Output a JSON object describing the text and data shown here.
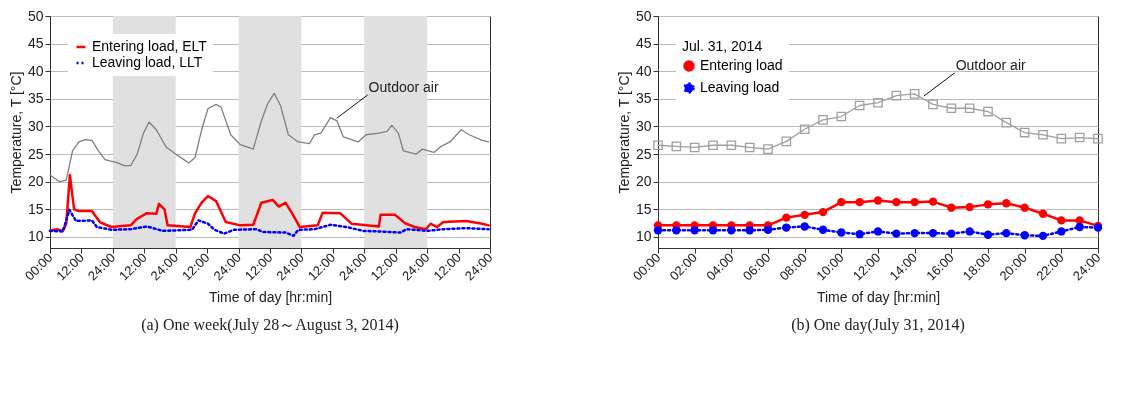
{
  "chart_data": [
    {
      "type": "line",
      "title": "(a)  One week(July 28～August 3, 2014)",
      "xlabel": "Time of day [hr:min]",
      "ylabel": "Temperature, T [°C]",
      "xlim": [
        "2014-07-28T00:00",
        "2014-08-04T00:00"
      ],
      "ylim": [
        8,
        50
      ],
      "xticks": [
        {
          "value": "2014-07-28T00:00",
          "label": "00:00"
        },
        {
          "value": "2014-07-28T12:00",
          "label": "12:00"
        },
        {
          "value": "2014-07-29T00:00",
          "label": "24:00"
        },
        {
          "value": "2014-07-29T12:00",
          "label": "12:00"
        },
        {
          "value": "2014-07-30T00:00",
          "label": "24:00"
        },
        {
          "value": "2014-07-30T12:00",
          "label": "12:00"
        },
        {
          "value": "2014-07-31T00:00",
          "label": "24:00"
        },
        {
          "value": "2014-07-31T12:00",
          "label": "12:00"
        },
        {
          "value": "2014-08-01T00:00",
          "label": "24:00"
        },
        {
          "value": "2014-08-01T12:00",
          "label": "12:00"
        },
        {
          "value": "2014-08-02T00:00",
          "label": "24:00"
        },
        {
          "value": "2014-08-02T12:00",
          "label": "12:00"
        },
        {
          "value": "2014-08-03T00:00",
          "label": "24:00"
        },
        {
          "value": "2014-08-03T12:00",
          "label": "12:00"
        },
        {
          "value": "2014-08-04T00:00",
          "label": "24:00"
        }
      ],
      "yticks": [
        10,
        15,
        20,
        25,
        30,
        35,
        40,
        45,
        50
      ],
      "grid": "y",
      "legend": "top left",
      "bands": [
        {
          "axis": "x",
          "from": "2014-07-29T00:00",
          "to": "2014-07-30T00:00",
          "color": "#e0e0e0"
        },
        {
          "axis": "x",
          "from": "2014-07-31T00:00",
          "to": "2014-08-01T00:00",
          "color": "#e0e0e0"
        },
        {
          "axis": "x",
          "from": "2014-08-02T00:00",
          "to": "2014-08-03T00:00",
          "color": "#e0e0e0"
        }
      ],
      "annotations": [
        {
          "text": "Outdoor air",
          "x": "2014-08-01T13:30",
          "y": 31.5
        }
      ],
      "series": [
        {
          "color": "#808080",
          "line_style": "solid",
          "x": [
            "2014-07-28T00:00",
            "2014-07-28T03:42",
            "2014-07-28T06:12",
            "2014-07-28T08:36",
            "2014-07-28T11:00",
            "2014-07-28T13:30",
            "2014-07-28T16:00",
            "2014-07-28T18:30",
            "2014-07-28T21:00",
            "2014-07-29T01:54",
            "2014-07-29T04:18",
            "2014-07-29T06:48",
            "2014-07-29T09:18",
            "2014-07-29T11:42",
            "2014-07-29T13:48",
            "2014-07-29T16:36",
            "2014-07-29T20:18",
            "2014-07-30T00:00",
            "2014-07-30T05:00",
            "2014-07-30T07:24",
            "2014-07-30T09:54",
            "2014-07-30T12:18",
            "2014-07-30T15:24",
            "2014-07-30T17:18",
            "2014-07-30T21:00",
            "2014-07-31T00:42",
            "2014-07-31T05:36",
            "2014-07-31T08:42",
            "2014-07-31T11:06",
            "2014-07-31T13:36",
            "2014-07-31T16:00",
            "2014-07-31T19:00",
            "2014-07-31T22:48",
            "2014-08-01T03:06",
            "2014-08-01T05:00",
            "2014-08-01T07:24",
            "2014-08-01T11:06",
            "2014-08-01T13:36",
            "2014-08-01T16:00",
            "2014-08-01T21:36",
            "2014-08-02T00:42",
            "2014-08-02T05:36",
            "2014-08-02T08:42",
            "2014-08-02T10:30",
            "2014-08-02T13:00",
            "2014-08-02T14:54",
            "2014-08-02T19:48",
            "2014-08-02T22:12",
            "2014-08-03T02:36",
            "2014-08-03T05:00",
            "2014-08-03T08:42",
            "2014-08-03T13:00",
            "2014-08-03T16:06",
            "2014-08-03T21:00",
            "2014-08-03T23:30"
          ],
          "values": [
            21.2,
            20,
            20.3,
            25.6,
            27.2,
            27.6,
            27.5,
            25.6,
            24,
            23.4,
            22.9,
            22.9,
            25,
            28.8,
            30.8,
            29.4,
            26.3,
            25,
            23.4,
            24.4,
            29.4,
            33.2,
            34,
            33.5,
            28.5,
            26.7,
            25.9,
            31,
            34.1,
            36,
            33.8,
            28.5,
            27.2,
            26.9,
            28.5,
            28.8,
            31.6,
            31,
            28.1,
            27.2,
            28.5,
            28.8,
            29.1,
            30.2,
            28.8,
            25.6,
            25,
            25.9,
            25.3,
            26.3,
            27.2,
            29.4,
            28.5,
            27.5,
            27.2
          ]
        },
        {
          "name": "Entering load, ELT",
          "color": "#ff0000",
          "line_style": "solid",
          "x": [
            "2014-07-28T00:00",
            "2014-07-28T02:30",
            "2014-07-28T04:54",
            "2014-07-28T06:12",
            "2014-07-28T07:36",
            "2014-07-28T09:12",
            "2014-07-28T11:00",
            "2014-07-28T16:00",
            "2014-07-28T19:00",
            "2014-07-28T23:24",
            "2014-07-29T06:48",
            "2014-07-29T09:18",
            "2014-07-29T13:00",
            "2014-07-29T16:36",
            "2014-07-29T17:36",
            "2014-07-29T19:42",
            "2014-07-29T20:54",
            "2014-07-30T05:36",
            "2014-07-30T07:24",
            "2014-07-30T09:54",
            "2014-07-30T12:18",
            "2014-07-30T15:24",
            "2014-07-30T19:06",
            "2014-07-31T00:42",
            "2014-07-31T05:36",
            "2014-07-31T08:42",
            "2014-07-31T13:00",
            "2014-07-31T15:24",
            "2014-07-31T17:54",
            "2014-07-31T20:24",
            "2014-07-31T23:24",
            "2014-08-01T06:12",
            "2014-08-01T08:06",
            "2014-08-01T14:48",
            "2014-08-01T19:06",
            "2014-08-02T05:36",
            "2014-08-02T06:12",
            "2014-08-02T11:48",
            "2014-08-02T15:30",
            "2014-08-02T19:12",
            "2014-08-02T23:30",
            "2014-08-03T01:18",
            "2014-08-03T03:48",
            "2014-08-03T06:12",
            "2014-08-03T14:54",
            "2014-08-03T21:00",
            "2014-08-03T23:30"
          ],
          "values": [
            11.1,
            11.4,
            11.1,
            12.4,
            21.2,
            15,
            14.7,
            14.7,
            12.7,
            11.8,
            12.1,
            13.3,
            14.3,
            14.2,
            16,
            15,
            12.1,
            11.8,
            14.3,
            16.2,
            17.4,
            16.5,
            12.7,
            12.1,
            12.2,
            16.2,
            16.7,
            15.5,
            16.2,
            14.3,
            11.8,
            12.1,
            14.4,
            14.3,
            12.4,
            11.9,
            14,
            14,
            12.5,
            11.8,
            11.4,
            12.4,
            11.8,
            12.7,
            12.9,
            12.4,
            12.1
          ]
        },
        {
          "name": "Leaving load, LLT",
          "color": "#0000ff",
          "line_style": "dotted",
          "x": [
            "2014-07-28T00:00",
            "2014-07-28T04:54",
            "2014-07-28T07:24",
            "2014-07-28T09:54",
            "2014-07-28T16:00",
            "2014-07-28T17:54",
            "2014-07-28T23:24",
            "2014-07-29T06:48",
            "2014-07-29T13:00",
            "2014-07-29T19:06",
            "2014-07-30T06:12",
            "2014-07-30T08:42",
            "2014-07-30T12:18",
            "2014-07-30T14:48",
            "2014-07-30T18:30",
            "2014-07-30T22:12",
            "2014-07-31T06:48",
            "2014-07-31T09:18",
            "2014-07-31T17:54",
            "2014-07-31T21:00",
            "2014-07-31T22:48",
            "2014-08-01T05:00",
            "2014-08-01T11:06",
            "2014-08-01T17:18",
            "2014-08-01T23:30",
            "2014-08-02T05:36",
            "2014-08-02T13:54",
            "2014-08-02T16:06",
            "2014-08-03T00:06",
            "2014-08-03T06:12",
            "2014-08-03T14:54",
            "2014-08-03T23:30"
          ],
          "values": [
            11.1,
            11,
            14.9,
            12.9,
            13,
            11.8,
            11.3,
            11.4,
            11.9,
            11.1,
            11.3,
            13,
            12.4,
            11.3,
            10.6,
            11.3,
            11.4,
            10.9,
            10.8,
            10.2,
            11.3,
            11.4,
            12.2,
            11.8,
            11.1,
            11,
            10.8,
            11.4,
            11.1,
            11.4,
            11.6,
            11.4
          ]
        }
      ]
    },
    {
      "type": "line",
      "title": "(b)  One day(July 31, 2014)",
      "xlabel": "Time of day [hr:min]",
      "ylabel": "Temperature, T [°C]",
      "xlim": [
        0,
        24
      ],
      "ylim": [
        8,
        50
      ],
      "xticks": [
        {
          "value": 0,
          "label": "00:00"
        },
        {
          "value": 2,
          "label": "02:00"
        },
        {
          "value": 4,
          "label": "04:00"
        },
        {
          "value": 6,
          "label": "06:00"
        },
        {
          "value": 8,
          "label": "08:00"
        },
        {
          "value": 10,
          "label": "10:00"
        },
        {
          "value": 12,
          "label": "12:00"
        },
        {
          "value": 14,
          "label": "14:00"
        },
        {
          "value": 16,
          "label": "16:00"
        },
        {
          "value": 18,
          "label": "18:00"
        },
        {
          "value": 20,
          "label": "20:00"
        },
        {
          "value": 22,
          "label": "22:00"
        },
        {
          "value": 24,
          "label": "24:00"
        }
      ],
      "yticks": [
        10,
        15,
        20,
        25,
        30,
        35,
        40,
        45,
        50
      ],
      "grid": "y",
      "legend": "top left",
      "legend_title": "Jul. 31, 2014",
      "annotations": [
        {
          "text": "Outdoor air",
          "x": 14.5,
          "y": 35.5
        }
      ],
      "x": [
        0,
        1,
        2,
        3,
        4,
        5,
        6,
        7,
        8,
        9,
        10,
        11,
        12,
        13,
        14,
        15,
        16,
        17,
        18,
        19,
        20,
        21,
        22,
        23,
        24
      ],
      "series": [
        {
          "color": "#a0a0a0",
          "line_style": "solid",
          "marker": "square",
          "values": [
            26.6,
            26.4,
            26.2,
            26.6,
            26.6,
            26.2,
            25.9,
            27.3,
            29.5,
            31.2,
            31.8,
            33.8,
            34.3,
            35.6,
            35.9,
            34,
            33.3,
            33.3,
            32.7,
            30.7,
            28.9,
            28.5,
            27.8,
            28,
            27.8
          ]
        },
        {
          "name": "Entering load",
          "color": "#ff0000",
          "line_style": "solid",
          "marker": "circle",
          "values": [
            12.1,
            12.1,
            12.1,
            12.1,
            12.1,
            12.1,
            12.1,
            13.5,
            14,
            14.5,
            16.3,
            16.3,
            16.6,
            16.3,
            16.3,
            16.4,
            15.3,
            15.4,
            15.9,
            16.1,
            15.3,
            14.2,
            13,
            13,
            12
          ]
        },
        {
          "name": "Leaving load",
          "color": "#0000ff",
          "line_style": "dotted",
          "marker": "circle",
          "values": [
            11.2,
            11.2,
            11.2,
            11.2,
            11.2,
            11.2,
            11.3,
            11.7,
            11.9,
            11.3,
            10.8,
            10.5,
            11,
            10.6,
            10.7,
            10.7,
            10.6,
            11,
            10.4,
            10.7,
            10.3,
            10.2,
            11,
            11.8,
            11.7
          ]
        }
      ]
    }
  ]
}
